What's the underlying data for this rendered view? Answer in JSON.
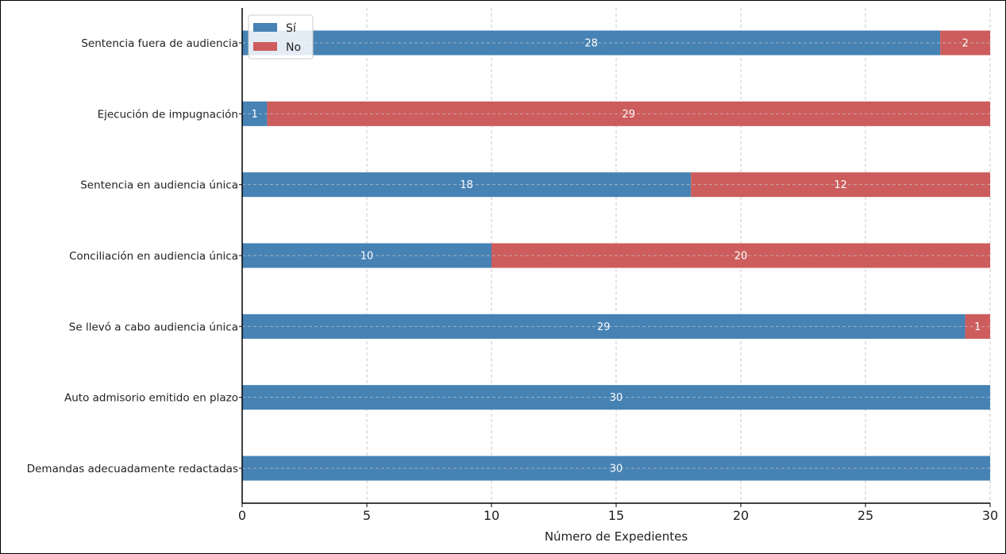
{
  "chart_data": {
    "type": "bar",
    "orientation": "horizontal",
    "stacked": true,
    "categories": [
      "Demandas adecuadamente redactadas",
      "Auto admisorio emitido en plazo",
      "Se llevó a cabo audiencia única",
      "Conciliación en audiencia única",
      "Sentencia en audiencia única",
      "Ejecución de impugnación",
      "Sentencia fuera de audiencia"
    ],
    "series": [
      {
        "name": "Sí",
        "color": "#4682b4",
        "values": [
          30,
          30,
          29,
          10,
          18,
          1,
          28
        ]
      },
      {
        "name": "No",
        "color": "#cd5c5c",
        "values": [
          0,
          0,
          1,
          20,
          12,
          29,
          2
        ]
      }
    ],
    "xlabel": "Número de Expedientes",
    "ylabel": "",
    "xlim": [
      0,
      30
    ],
    "xticks": [
      0,
      5,
      10,
      15,
      20,
      25,
      30
    ],
    "grid": true,
    "legend_position": "top-left"
  }
}
